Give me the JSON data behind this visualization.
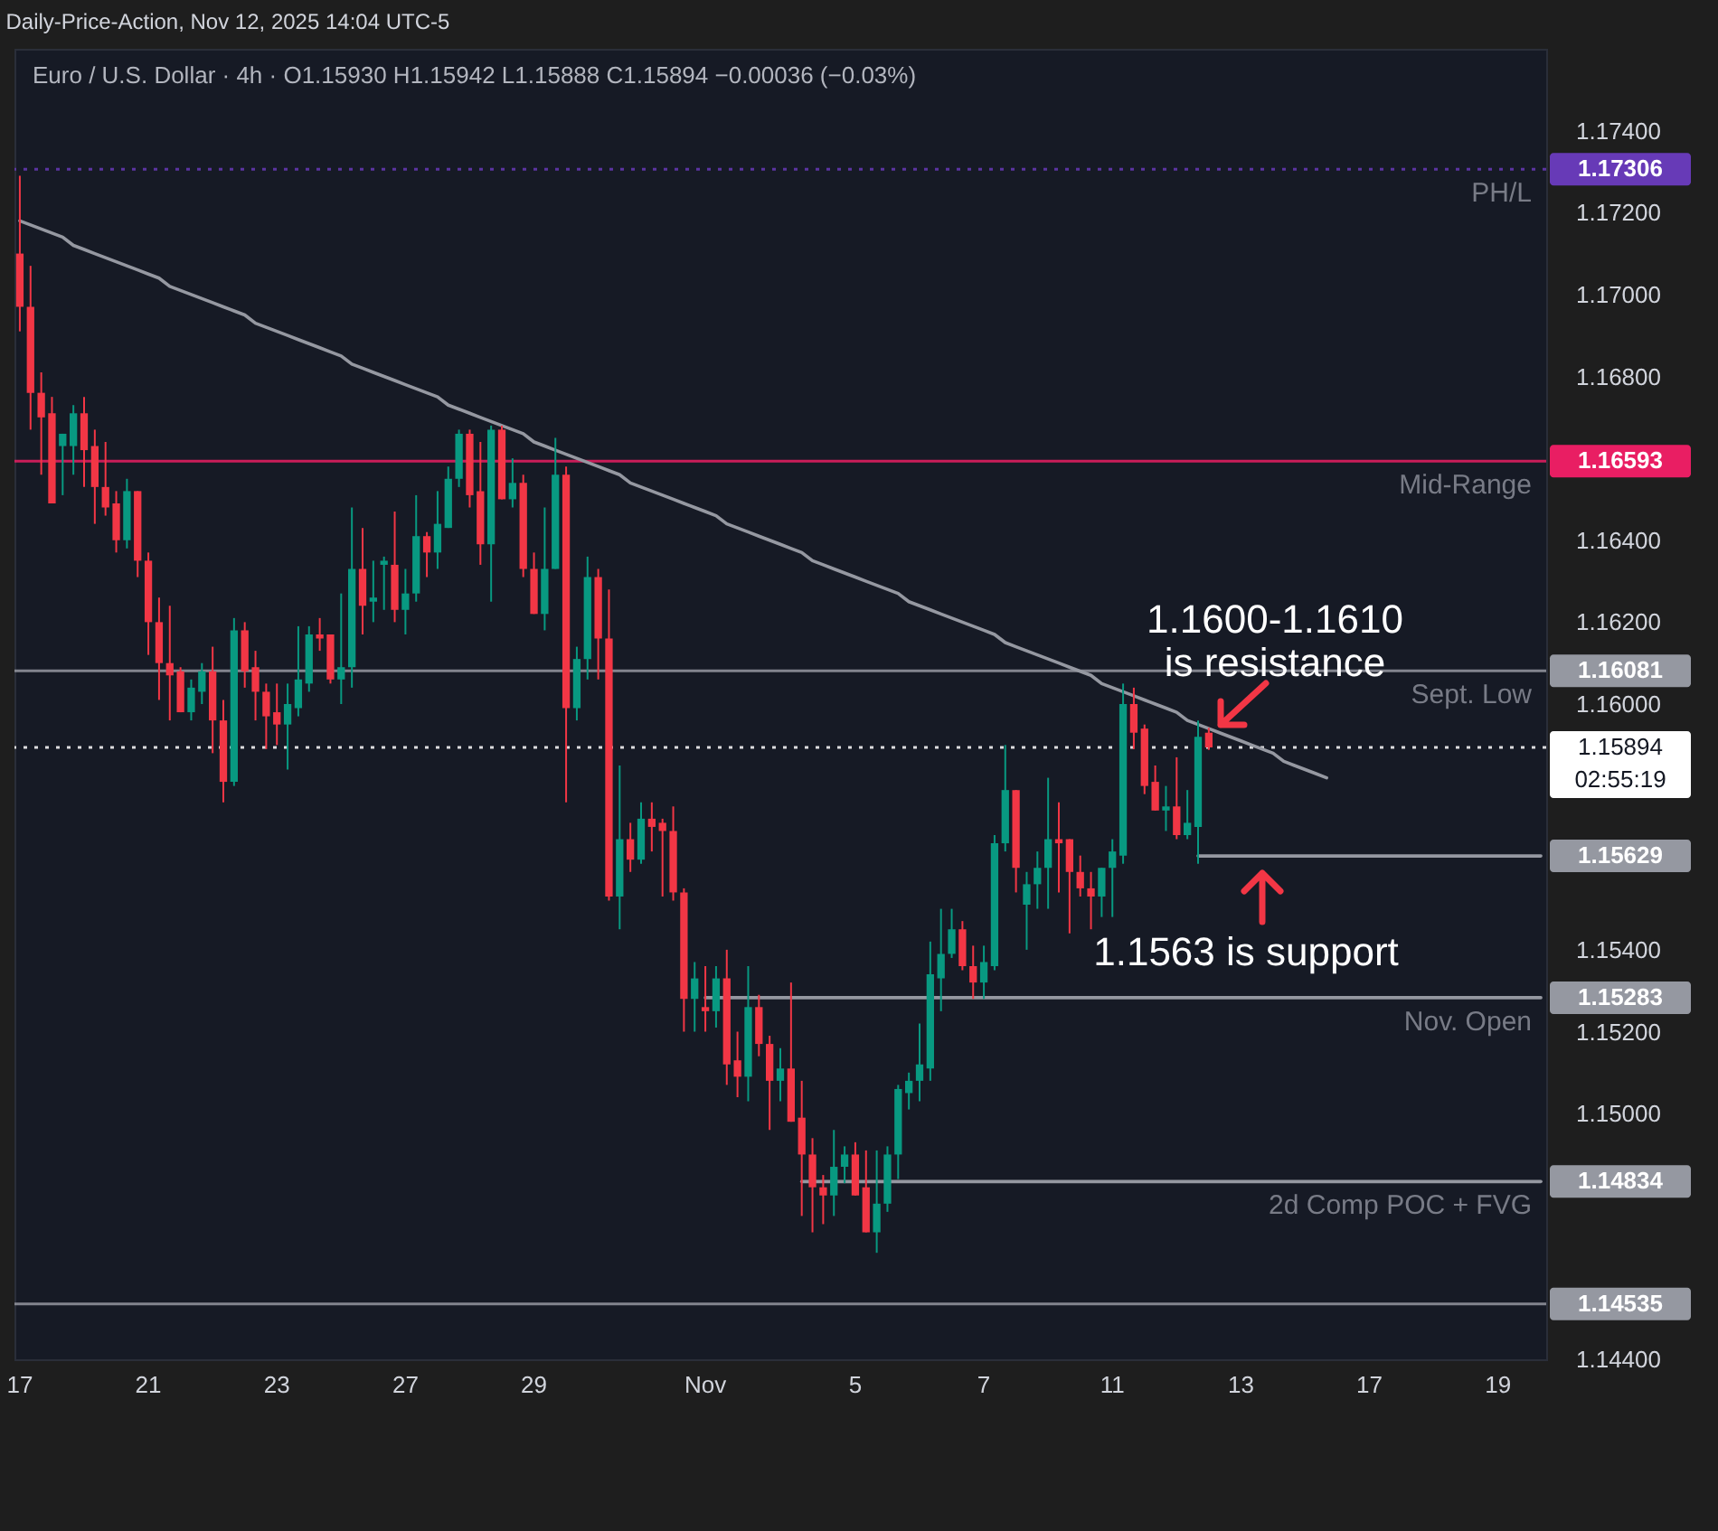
{
  "chart_data": {
    "type": "candlestick",
    "title": "Daily-Price-Action, Nov 12, 2025 14:04 UTC-5",
    "subtitle": "Euro / U.S. Dollar · 4h · O1.15930 H1.15942 L1.15888 C1.15894 −0.00036 (−0.03%)",
    "categories": [
      "17",
      null,
      null,
      null,
      null,
      null,
      null,
      null,
      null,
      null,
      null,
      null,
      "21",
      null,
      null,
      null,
      null,
      null,
      null,
      null,
      null,
      null,
      null,
      null,
      "23",
      null,
      null,
      null,
      null,
      null,
      null,
      null,
      null,
      null,
      null,
      null,
      "27",
      null,
      null,
      null,
      null,
      null,
      null,
      null,
      null,
      null,
      null,
      null,
      "29",
      null,
      null,
      null,
      null,
      null,
      null,
      null,
      null,
      null,
      null,
      null,
      null,
      null,
      null,
      null,
      "Nov",
      null,
      null,
      null,
      null,
      null,
      null,
      null,
      null,
      null,
      null,
      null,
      null,
      null,
      "5",
      null,
      null,
      null,
      null,
      null,
      null,
      null,
      null,
      null,
      null,
      null,
      "7",
      null,
      null,
      null,
      null,
      null,
      null,
      null,
      null,
      null,
      null,
      null,
      "11",
      null,
      null,
      null,
      null,
      null,
      null,
      null,
      null,
      null,
      null,
      null,
      "13",
      null,
      null,
      null,
      null,
      null,
      null,
      null,
      null,
      null,
      null,
      null,
      "17",
      null,
      null,
      null,
      null,
      null,
      null,
      null,
      null,
      null,
      null,
      null,
      "19",
      null,
      null,
      null,
      null
    ],
    "ohlc": [
      [
        1.171,
        1.1729,
        1.1691,
        1.1697
      ],
      [
        1.1697,
        1.1707,
        1.1667,
        1.1676
      ],
      [
        1.1676,
        1.1681,
        1.1656,
        1.167
      ],
      [
        1.1671,
        1.1675,
        1.1649,
        1.1649
      ],
      [
        1.1663,
        1.1666,
        1.1651,
        1.1666
      ],
      [
        1.1663,
        1.1673,
        1.1656,
        1.1671
      ],
      [
        1.1671,
        1.1675,
        1.1653,
        1.1662
      ],
      [
        1.1663,
        1.1667,
        1.1644,
        1.1653
      ],
      [
        1.1653,
        1.1664,
        1.1646,
        1.1648
      ],
      [
        1.1649,
        1.1652,
        1.1637,
        1.164
      ],
      [
        1.164,
        1.1655,
        1.1638,
        1.1652
      ],
      [
        1.1652,
        1.1652,
        1.1631,
        1.1635
      ],
      [
        1.1635,
        1.1637,
        1.1612,
        1.162
      ],
      [
        1.162,
        1.1626,
        1.1601,
        1.161
      ],
      [
        1.161,
        1.1624,
        1.1596,
        1.1607
      ],
      [
        1.1608,
        1.1609,
        1.1598,
        1.1598
      ],
      [
        1.1598,
        1.1606,
        1.1596,
        1.1604
      ],
      [
        1.1603,
        1.161,
        1.16,
        1.1608
      ],
      [
        1.1608,
        1.1614,
        1.1588,
        1.1596
      ],
      [
        1.1596,
        1.1601,
        1.1576,
        1.1581
      ],
      [
        1.1581,
        1.1621,
        1.158,
        1.1618
      ],
      [
        1.1618,
        1.162,
        1.1604,
        1.1608
      ],
      [
        1.1609,
        1.1613,
        1.1596,
        1.1603
      ],
      [
        1.1603,
        1.1605,
        1.1589,
        1.1597
      ],
      [
        1.1598,
        1.1605,
        1.159,
        1.1595
      ],
      [
        1.1595,
        1.1605,
        1.1584,
        1.16
      ],
      [
        1.1599,
        1.1619,
        1.1597,
        1.1606
      ],
      [
        1.1605,
        1.1619,
        1.1603,
        1.1617
      ],
      [
        1.1617,
        1.1621,
        1.1613,
        1.1616
      ],
      [
        1.1617,
        1.1617,
        1.1605,
        1.1606
      ],
      [
        1.1606,
        1.1627,
        1.16,
        1.1609
      ],
      [
        1.1609,
        1.1648,
        1.1604,
        1.1633
      ],
      [
        1.1633,
        1.1643,
        1.1617,
        1.1624
      ],
      [
        1.1625,
        1.1635,
        1.162,
        1.1626
      ],
      [
        1.1634,
        1.1636,
        1.1623,
        1.1635
      ],
      [
        1.1634,
        1.1647,
        1.162,
        1.1623
      ],
      [
        1.1623,
        1.1633,
        1.1617,
        1.1627
      ],
      [
        1.1627,
        1.1651,
        1.1625,
        1.1641
      ],
      [
        1.1641,
        1.1642,
        1.1631,
        1.1637
      ],
      [
        1.1637,
        1.1652,
        1.1633,
        1.1644
      ],
      [
        1.1643,
        1.1658,
        1.1643,
        1.1655
      ],
      [
        1.1655,
        1.1667,
        1.1653,
        1.1666
      ],
      [
        1.1666,
        1.1667,
        1.1648,
        1.1651
      ],
      [
        1.1652,
        1.1664,
        1.1634,
        1.1639
      ],
      [
        1.1639,
        1.1668,
        1.1625,
        1.1667
      ],
      [
        1.1667,
        1.1668,
        1.165,
        1.165
      ],
      [
        1.165,
        1.166,
        1.1648,
        1.1654
      ],
      [
        1.1654,
        1.1656,
        1.1631,
        1.1633
      ],
      [
        1.1633,
        1.1637,
        1.1622,
        1.1622
      ],
      [
        1.1622,
        1.1648,
        1.1618,
        1.1633
      ],
      [
        1.1633,
        1.1665,
        1.1633,
        1.1656
      ],
      [
        1.1656,
        1.1658,
        1.1576,
        1.1599
      ],
      [
        1.1599,
        1.1614,
        1.1596,
        1.1611
      ],
      [
        1.1611,
        1.1636,
        1.1606,
        1.1631
      ],
      [
        1.1631,
        1.1633,
        1.1606,
        1.1616
      ],
      [
        1.1616,
        1.1628,
        1.1552,
        1.1553
      ],
      [
        1.1553,
        1.1585,
        1.1545,
        1.1567
      ],
      [
        1.1567,
        1.1571,
        1.1559,
        1.1562
      ],
      [
        1.1562,
        1.1576,
        1.1561,
        1.1572
      ],
      [
        1.1572,
        1.1576,
        1.1564,
        1.157
      ],
      [
        1.1571,
        1.1572,
        1.1553,
        1.1569
      ],
      [
        1.1569,
        1.1575,
        1.1552,
        1.1554
      ],
      [
        1.1554,
        1.1555,
        1.152,
        1.1528
      ],
      [
        1.1528,
        1.1537,
        1.152,
        1.1533
      ],
      [
        1.1526,
        1.1536,
        1.152,
        1.1525
      ],
      [
        1.1525,
        1.1536,
        1.1521,
        1.1533
      ],
      [
        1.1533,
        1.154,
        1.1507,
        1.1512
      ],
      [
        1.1513,
        1.152,
        1.1504,
        1.1509
      ],
      [
        1.1509,
        1.1536,
        1.1503,
        1.1526
      ],
      [
        1.1526,
        1.1529,
        1.1514,
        1.1517
      ],
      [
        1.1517,
        1.1519,
        1.1496,
        1.1508
      ],
      [
        1.1508,
        1.1516,
        1.1503,
        1.1511
      ],
      [
        1.1511,
        1.1532,
        1.1498,
        1.1498
      ],
      [
        1.1499,
        1.1508,
        1.1475,
        1.149
      ],
      [
        1.149,
        1.1494,
        1.1471,
        1.1482
      ],
      [
        1.1482,
        1.1485,
        1.1473,
        1.148
      ],
      [
        1.148,
        1.1496,
        1.1475,
        1.1487
      ],
      [
        1.1487,
        1.1492,
        1.1483,
        1.149
      ],
      [
        1.149,
        1.1493,
        1.148,
        1.148
      ],
      [
        1.1482,
        1.1491,
        1.1471,
        1.1471
      ],
      [
        1.1471,
        1.1491,
        1.1466,
        1.1478
      ],
      [
        1.1478,
        1.1492,
        1.1476,
        1.149
      ],
      [
        1.149,
        1.1507,
        1.1484,
        1.1506
      ],
      [
        1.1505,
        1.151,
        1.1501,
        1.1508
      ],
      [
        1.1508,
        1.1522,
        1.1503,
        1.1512
      ],
      [
        1.1511,
        1.1542,
        1.1508,
        1.1534
      ],
      [
        1.1533,
        1.155,
        1.1525,
        1.1539
      ],
      [
        1.1539,
        1.155,
        1.1538,
        1.1545
      ],
      [
        1.1545,
        1.1547,
        1.1535,
        1.1536
      ],
      [
        1.1536,
        1.1541,
        1.1528,
        1.1532
      ],
      [
        1.1532,
        1.1541,
        1.1528,
        1.1537
      ],
      [
        1.1536,
        1.1568,
        1.1535,
        1.1566
      ],
      [
        1.1566,
        1.159,
        1.1564,
        1.1579
      ],
      [
        1.1579,
        1.1579,
        1.1554,
        1.156
      ],
      [
        1.1551,
        1.1559,
        1.154,
        1.1556
      ],
      [
        1.1556,
        1.1564,
        1.155,
        1.156
      ],
      [
        1.156,
        1.1582,
        1.155,
        1.1567
      ],
      [
        1.1567,
        1.1576,
        1.1554,
        1.1566
      ],
      [
        1.1567,
        1.1567,
        1.1544,
        1.1559
      ],
      [
        1.1559,
        1.1563,
        1.1553,
        1.1555
      ],
      [
        1.1555,
        1.1559,
        1.1545,
        1.1553
      ],
      [
        1.1553,
        1.156,
        1.1548,
        1.156
      ],
      [
        1.156,
        1.1567,
        1.1548,
        1.1564
      ],
      [
        1.1563,
        1.1605,
        1.1561,
        1.16
      ],
      [
        1.16,
        1.1604,
        1.1589,
        1.1593
      ],
      [
        1.1594,
        1.1595,
        1.1578,
        1.158
      ],
      [
        1.1581,
        1.1585,
        1.1574,
        1.1574
      ],
      [
        1.1574,
        1.158,
        1.1569,
        1.1575
      ],
      [
        1.1575,
        1.1587,
        1.1567,
        1.1568
      ],
      [
        1.1568,
        1.1579,
        1.1567,
        1.1571
      ],
      [
        1.157,
        1.1596,
        1.1561,
        1.1592
      ],
      [
        1.1593,
        1.15942,
        1.15888,
        1.15894
      ],
      null,
      null,
      null,
      null,
      null,
      null,
      null,
      null,
      null,
      null,
      null,
      null,
      null,
      null,
      null,
      null,
      null,
      null,
      null,
      null,
      null,
      null,
      null,
      null,
      null,
      null,
      null,
      null,
      null,
      null,
      null
    ],
    "series": [
      {
        "type": "line",
        "color": "#9598a1",
        "values": [
          1.1718,
          1.1717,
          1.1716,
          1.1715,
          1.1714,
          1.1712,
          1.1711,
          1.171,
          1.1709,
          1.1708,
          1.1707,
          1.1706,
          1.1705,
          1.1704,
          1.1702,
          1.1701,
          1.17,
          1.1699,
          1.1698,
          1.1697,
          1.1696,
          1.1695,
          1.1693,
          1.1692,
          1.1691,
          1.169,
          1.1689,
          1.1688,
          1.1687,
          1.1686,
          1.1685,
          1.1683,
          1.1682,
          1.1681,
          1.168,
          1.1679,
          1.1678,
          1.1677,
          1.1676,
          1.1675,
          1.1673,
          1.1672,
          1.1671,
          1.167,
          1.1669,
          1.1668,
          1.1667,
          1.1666,
          1.1664,
          1.1663,
          1.1662,
          1.1661,
          1.166,
          1.1659,
          1.1658,
          1.1657,
          1.1656,
          1.1654,
          1.1653,
          1.1652,
          1.1651,
          1.165,
          1.1649,
          1.1648,
          1.1647,
          1.1646,
          1.1644,
          1.1643,
          1.1642,
          1.1641,
          1.164,
          1.1639,
          1.1638,
          1.1637,
          1.1635,
          1.1634,
          1.1633,
          1.1632,
          1.1631,
          1.163,
          1.1629,
          1.1628,
          1.1627,
          1.1625,
          1.1624,
          1.1623,
          1.1622,
          1.1621,
          1.162,
          1.1619,
          1.1618,
          1.1617,
          1.1615,
          1.1614,
          1.1613,
          1.1612,
          1.1611,
          1.161,
          1.1609,
          1.1608,
          1.1607,
          1.1605,
          1.1604,
          1.1603,
          1.1602,
          1.1601,
          1.16,
          1.1599,
          1.1598,
          1.1596,
          1.1595,
          1.1594,
          1.1593,
          1.1592,
          1.1591,
          1.159,
          1.1589,
          1.1588,
          1.1586,
          1.1585,
          1.1584,
          1.1583,
          1.1582,
          null,
          null,
          null,
          null,
          null,
          null,
          null,
          null,
          null,
          null,
          null,
          null,
          null,
          null,
          null,
          null,
          null,
          null,
          null,
          null
        ]
      },
      {
        "type": "line",
        "name": "Nov. Open",
        "color": "#9598a1",
        "values": [
          null,
          null,
          null,
          null,
          null,
          null,
          null,
          null,
          null,
          null,
          null,
          null,
          null,
          null,
          null,
          null,
          null,
          null,
          null,
          null,
          null,
          null,
          null,
          null,
          null,
          null,
          null,
          null,
          null,
          null,
          null,
          null,
          null,
          null,
          null,
          null,
          null,
          null,
          null,
          null,
          null,
          null,
          null,
          null,
          null,
          null,
          null,
          null,
          null,
          null,
          null,
          null,
          null,
          null,
          null,
          null,
          null,
          null,
          null,
          null,
          null,
          null,
          null,
          null,
          1.15283,
          1.15283,
          1.15283,
          1.15283,
          1.15283,
          1.15283,
          1.15283,
          1.15283,
          1.15283,
          1.15283,
          1.15283,
          1.15283,
          1.15283,
          1.15283,
          1.15283,
          1.15283,
          1.15283,
          1.15283,
          1.15283,
          1.15283,
          1.15283,
          1.15283,
          1.15283,
          1.15283,
          1.15283,
          1.15283,
          1.15283,
          1.15283,
          1.15283,
          1.15283,
          1.15283,
          1.15283,
          1.15283,
          1.15283,
          1.15283,
          1.15283,
          1.15283,
          1.15283,
          1.15283,
          1.15283,
          1.15283,
          1.15283,
          1.15283,
          1.15283,
          1.15283,
          1.15283,
          1.15283,
          1.15283,
          1.15283,
          1.15283,
          1.15283,
          1.15283,
          1.15283,
          1.15283,
          1.15283,
          1.15283,
          1.15283,
          1.15283,
          1.15283,
          1.15283,
          1.15283,
          1.15283,
          1.15283,
          1.15283,
          1.15283,
          1.15283,
          1.15283,
          1.15283,
          1.15283,
          1.15283,
          1.15283,
          1.15283,
          1.15283,
          1.15283,
          1.15283,
          1.15283,
          1.15283,
          1.15283,
          1.15283
        ]
      },
      {
        "type": "line",
        "name": "2d Comp POC + FVG",
        "color": "#9598a1",
        "values": [
          null,
          null,
          null,
          null,
          null,
          null,
          null,
          null,
          null,
          null,
          null,
          null,
          null,
          null,
          null,
          null,
          null,
          null,
          null,
          null,
          null,
          null,
          null,
          null,
          null,
          null,
          null,
          null,
          null,
          null,
          null,
          null,
          null,
          null,
          null,
          null,
          null,
          null,
          null,
          null,
          null,
          null,
          null,
          null,
          null,
          null,
          null,
          null,
          null,
          null,
          null,
          null,
          null,
          null,
          null,
          null,
          null,
          null,
          null,
          null,
          null,
          null,
          null,
          null,
          null,
          null,
          null,
          null,
          null,
          null,
          null,
          null,
          null,
          1.14834,
          1.14834,
          1.14834,
          1.14834,
          1.14834,
          1.14834,
          1.14834,
          1.14834,
          1.14834,
          1.14834,
          1.14834,
          1.14834,
          1.14834,
          1.14834,
          1.14834,
          1.14834,
          1.14834,
          1.14834,
          1.14834,
          1.14834,
          1.14834,
          1.14834,
          1.14834,
          1.14834,
          1.14834,
          1.14834,
          1.14834,
          1.14834,
          1.14834,
          1.14834,
          1.14834,
          1.14834,
          1.14834,
          1.14834,
          1.14834,
          1.14834,
          1.14834,
          1.14834,
          1.14834,
          1.14834,
          1.14834,
          1.14834,
          1.14834,
          1.14834,
          1.14834,
          1.14834,
          1.14834,
          1.14834,
          1.14834,
          1.14834,
          1.14834,
          1.14834,
          1.14834,
          1.14834,
          1.14834,
          1.14834,
          1.14834,
          1.14834,
          1.14834,
          1.14834,
          1.14834,
          1.14834,
          1.14834,
          1.14834,
          1.14834,
          1.14834,
          1.14834,
          1.14834,
          1.14834,
          1.14834
        ]
      },
      {
        "type": "line",
        "color": "#9598a1",
        "values": [
          null,
          null,
          null,
          null,
          null,
          null,
          null,
          null,
          null,
          null,
          null,
          null,
          null,
          null,
          null,
          null,
          null,
          null,
          null,
          null,
          null,
          null,
          null,
          null,
          null,
          null,
          null,
          null,
          null,
          null,
          null,
          null,
          null,
          null,
          null,
          null,
          null,
          null,
          null,
          null,
          null,
          null,
          null,
          null,
          null,
          null,
          null,
          null,
          null,
          null,
          null,
          null,
          null,
          null,
          null,
          null,
          null,
          null,
          null,
          null,
          null,
          null,
          null,
          null,
          null,
          null,
          null,
          null,
          null,
          null,
          null,
          null,
          null,
          null,
          null,
          null,
          null,
          null,
          null,
          null,
          null,
          null,
          null,
          null,
          null,
          null,
          null,
          null,
          null,
          null,
          null,
          null,
          null,
          null,
          null,
          null,
          null,
          null,
          null,
          null,
          null,
          null,
          null,
          null,
          null,
          null,
          null,
          null,
          null,
          null,
          1.15629,
          1.15629,
          1.15629,
          1.15629,
          1.15629,
          1.15629,
          1.15629,
          1.15629,
          1.15629,
          1.15629,
          1.15629,
          1.15629,
          1.15629,
          1.15629,
          1.15629,
          1.15629,
          1.15629,
          1.15629,
          1.15629,
          1.15629,
          1.15629,
          1.15629,
          1.15629,
          1.15629,
          1.15629,
          1.15629,
          1.15629,
          1.15629,
          1.15629,
          1.15629,
          1.15629,
          1.15629,
          1.15629
        ]
      }
    ],
    "ref_lines": [
      {
        "axis": "y",
        "value": 1.17306,
        "label": "PH/L",
        "color": "#673ab7",
        "line_style": "dotted"
      },
      {
        "axis": "y",
        "value": 1.16593,
        "label": "Mid-Range",
        "color": "#e91e63"
      },
      {
        "axis": "y",
        "value": 1.16081,
        "label": "Sept. Low",
        "color": "#9598a1"
      },
      {
        "axis": "y",
        "value": 1.15894,
        "color": "#ffffff",
        "line_style": "dotted"
      },
      {
        "axis": "y",
        "value": 1.14535,
        "color": "#9598a1"
      }
    ],
    "annotations": [
      "1.1600-1.1610\nis resistance",
      "1.1563 is support",
      "02:55:19"
    ],
    "ylim": [
      1.144,
      1.176
    ],
    "yticks": [
      {
        "value": 1.174,
        "label": "1.17400"
      },
      1.17306,
      {
        "value": 1.172,
        "label": "1.17200"
      },
      {
        "value": 1.17,
        "label": "1.17000"
      },
      {
        "value": 1.168,
        "label": "1.16800"
      },
      1.16593,
      {
        "value": 1.164,
        "label": "1.16400"
      },
      {
        "value": 1.162,
        "label": "1.16200"
      },
      1.16081,
      {
        "value": 1.16,
        "label": "1.16000"
      },
      1.15894,
      1.15629,
      {
        "value": 1.154,
        "label": "1.15400"
      },
      1.15283,
      {
        "value": 1.152,
        "label": "1.15200"
      },
      {
        "value": 1.15,
        "label": "1.15000"
      },
      1.14834,
      1.14535,
      {
        "value": 1.144,
        "label": "1.14400"
      }
    ]
  }
}
